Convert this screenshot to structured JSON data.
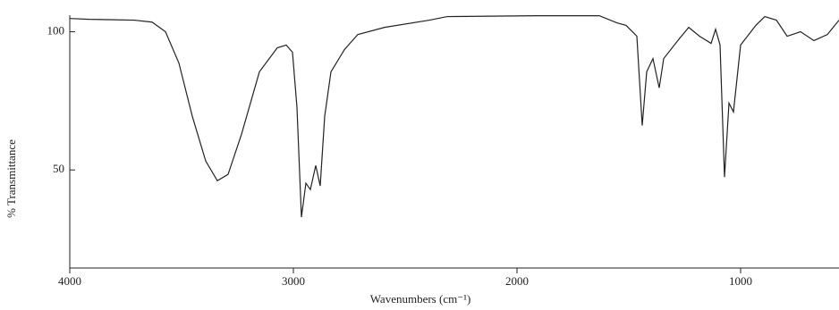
{
  "chart_data": {
    "type": "line",
    "xlabel": "Wavenumbers (cm⁻¹)",
    "ylabel": "% Transmittance",
    "x": [
      4000,
      3912,
      3712,
      3632,
      3572,
      3512,
      3452,
      3392,
      3340,
      3292,
      3232,
      3152,
      3072,
      3032,
      3004,
      2984,
      2964,
      2944,
      2924,
      2900,
      2880,
      2860,
      2832,
      2772,
      2712,
      2592,
      2392,
      2312,
      1912,
      1632,
      1552,
      1512,
      1464,
      1440,
      1420,
      1392,
      1364,
      1344,
      1272,
      1232,
      1184,
      1132,
      1112,
      1092,
      1072,
      1052,
      1032,
      1000,
      932,
      892,
      840,
      792,
      732,
      672,
      612,
      560
    ],
    "series": [
      {
        "name": "spectrum",
        "color": "#222222",
        "values": [
          104.8,
          104.5,
          104.2,
          103.5,
          100,
          88.7,
          69.4,
          53.2,
          46.1,
          48.4,
          62.9,
          85.5,
          94.2,
          95.2,
          92.6,
          72.6,
          32.9,
          45.2,
          42.9,
          51.6,
          44.2,
          69.4,
          85.5,
          93.5,
          99,
          101.6,
          104.2,
          105.5,
          105.8,
          105.8,
          103.2,
          102.3,
          98.4,
          66.1,
          85.5,
          90.3,
          79.7,
          90.3,
          97.7,
          101.6,
          98.4,
          95.8,
          100.9,
          95.2,
          47.4,
          74.2,
          71,
          95.2,
          102.3,
          105.5,
          104.2,
          98.4,
          100,
          96.8,
          99,
          104.2
        ]
      }
    ],
    "xlim": [
      4000,
      560
    ],
    "xticks": [
      4000,
      3000,
      2000,
      1000
    ],
    "ylim": [
      14.5,
      106
    ],
    "yticks": [
      50,
      100
    ]
  }
}
